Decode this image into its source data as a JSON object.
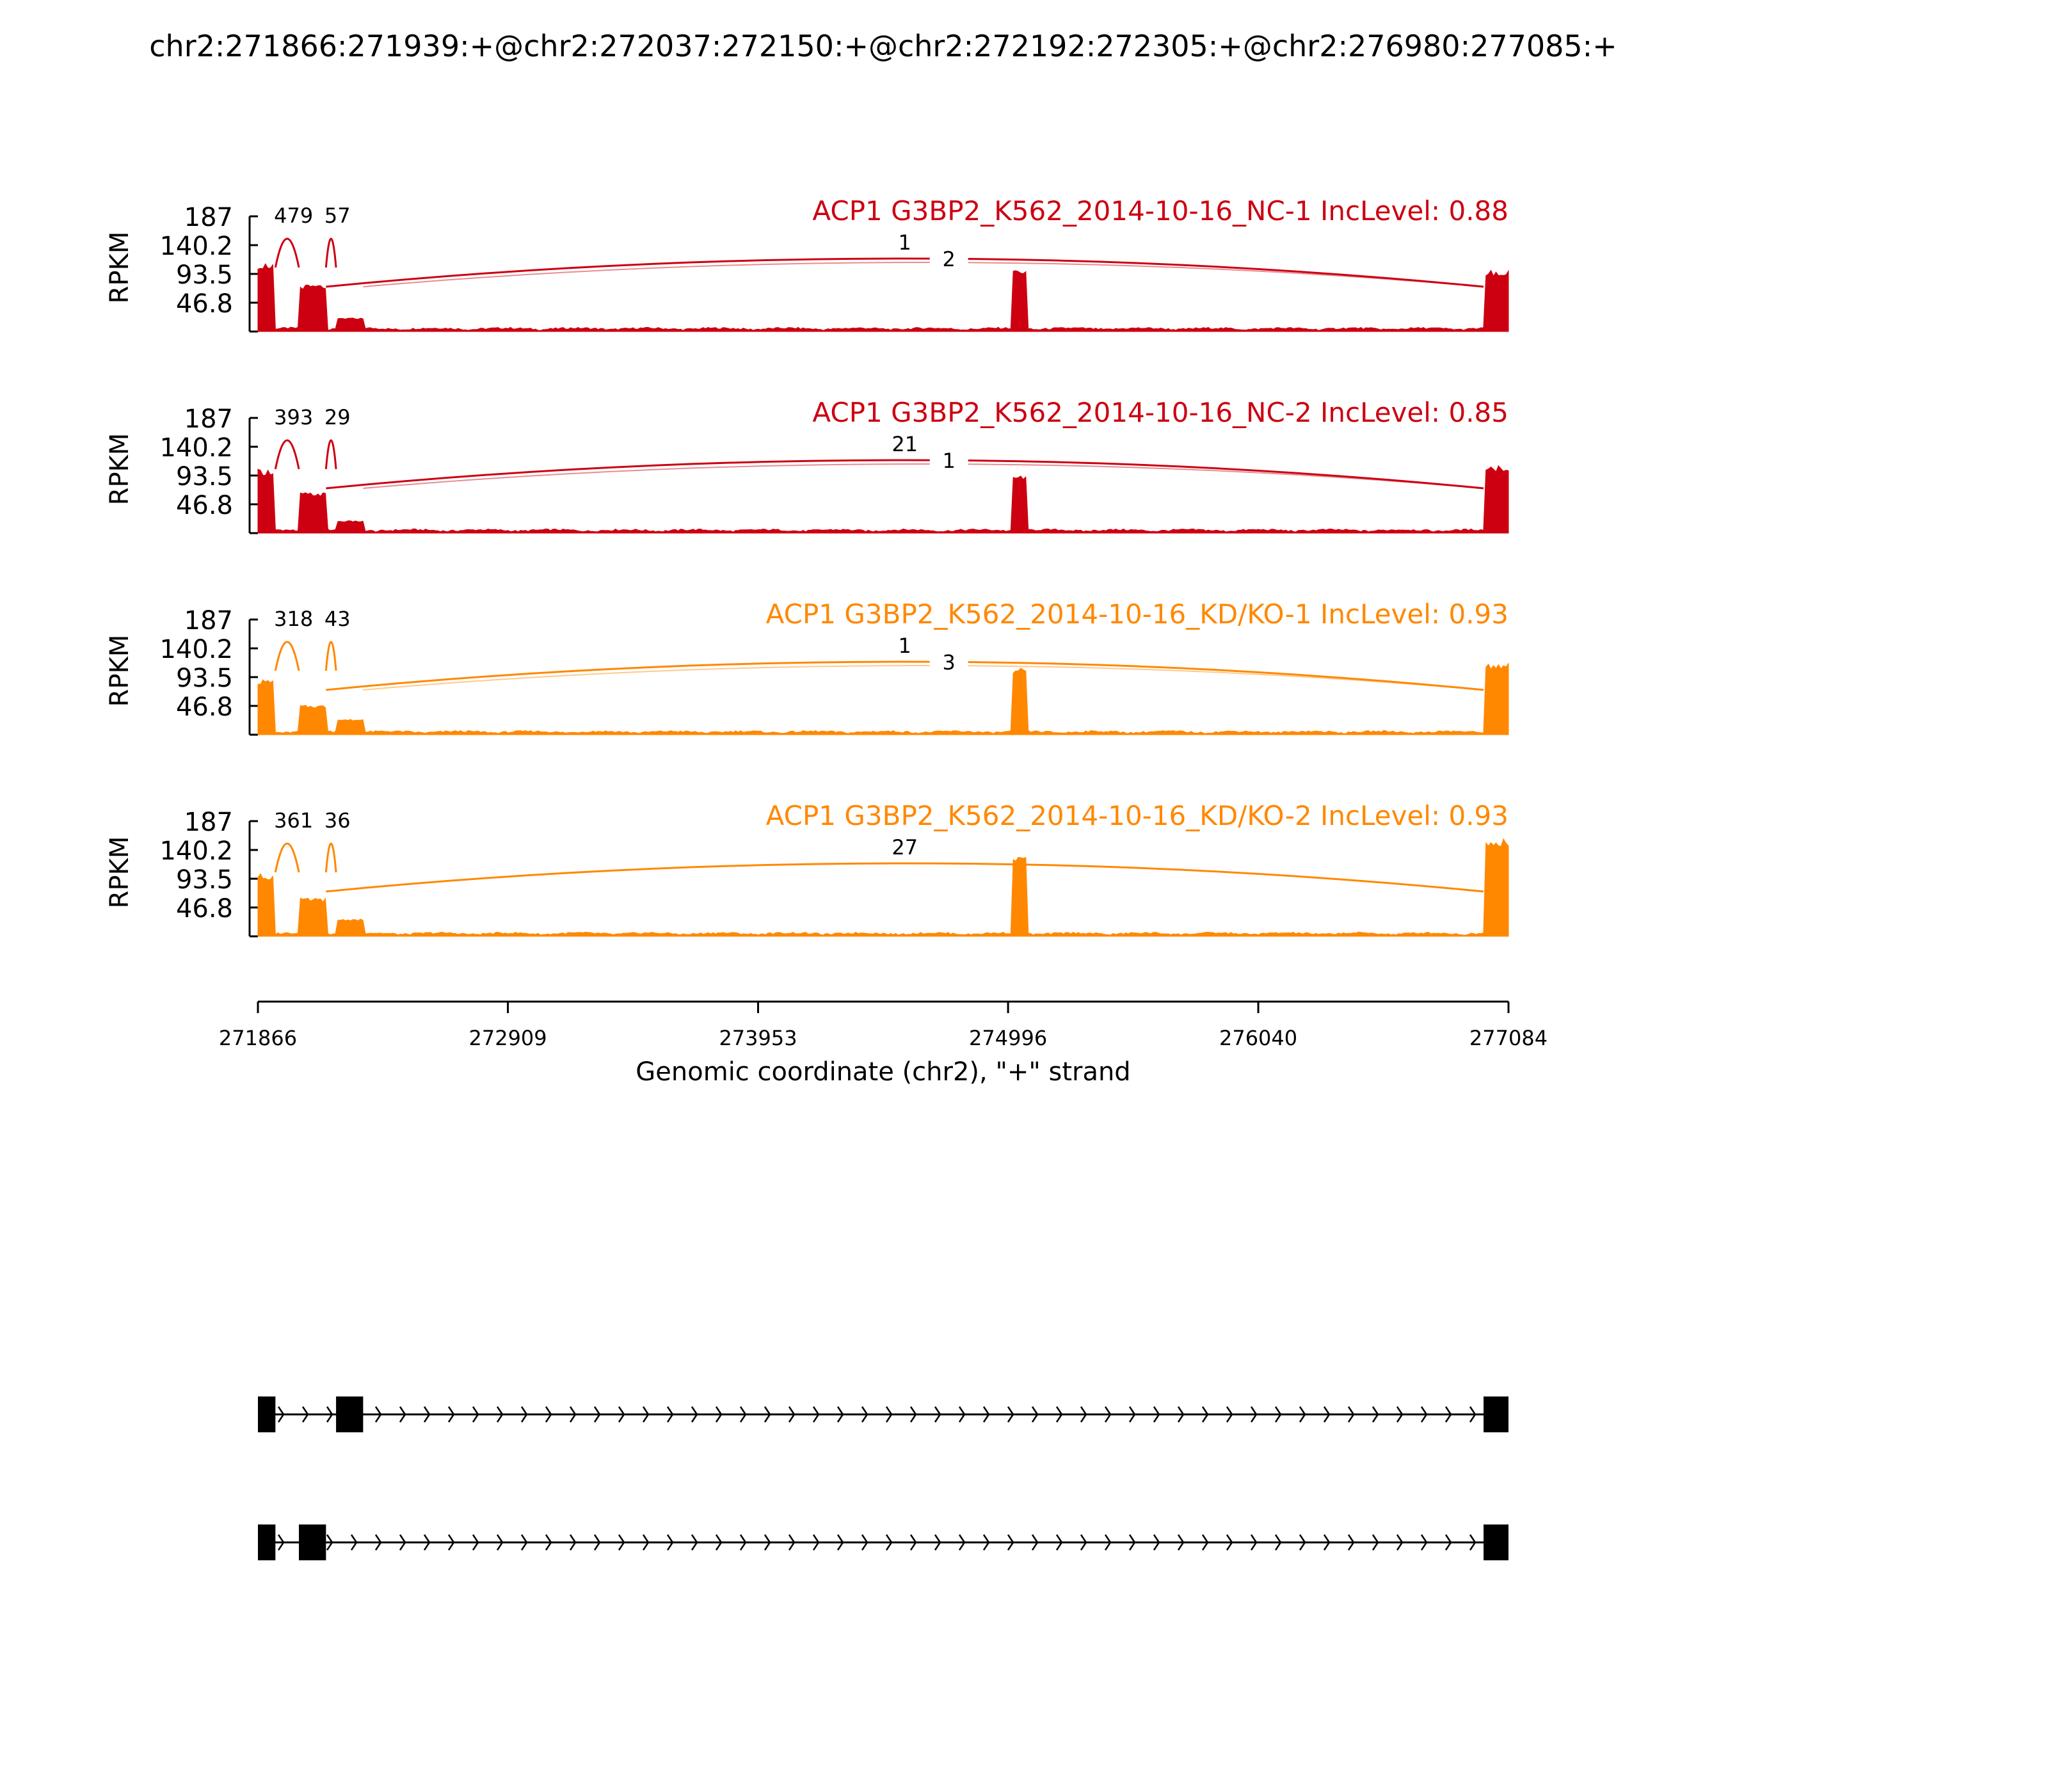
{
  "chart_data": {
    "type": "area",
    "title": "chr2:271866:271939:+@chr2:272037:272150:+@chr2:272192:272305:+@chr2:276980:277085:+",
    "ylabel": "RPKM",
    "xlabel": "Genomic coordinate (chr2), \"+\" strand",
    "xlim": [
      271866,
      277084
    ],
    "ylim": [
      0,
      187
    ],
    "xticks": [
      "271866",
      "272909",
      "273953",
      "274996",
      "276040",
      "277084"
    ],
    "xtick_values": [
      271866,
      272909,
      273953,
      274996,
      276040,
      277084
    ],
    "yticks": [
      "187",
      "140.2",
      "93.5",
      "46.8"
    ],
    "ytick_values": [
      187,
      140.2,
      93.5,
      46.8
    ],
    "grid": false,
    "exons": [
      [
        271866,
        271939
      ],
      [
        272037,
        272150
      ],
      [
        272192,
        272305
      ],
      [
        275011,
        275075
      ],
      [
        276980,
        277084
      ]
    ],
    "panels": [
      {
        "label": "ACP1 G3BP2_K562_2014-10-16_NC-1 IncLevel: 0.88",
        "color": "#cc0011",
        "exon_heights": [
          112,
          76,
          22,
          99,
          100
        ],
        "junctions": [
          {
            "label": "479",
            "from": 271939,
            "to": 272037,
            "shade": "dark"
          },
          {
            "label": "57",
            "from": 272150,
            "to": 272192,
            "shade": "dark"
          },
          {
            "label": "1",
            "from": 272150,
            "to": 276980,
            "shade": "dark"
          },
          {
            "label": "2",
            "from": 272305,
            "to": 276980,
            "shade": "light"
          }
        ]
      },
      {
        "label": "ACP1 G3BP2_K562_2014-10-16_NC-2 IncLevel: 0.85",
        "color": "#cc0011",
        "exon_heights": [
          104,
          66,
          20,
          96,
          110
        ],
        "junctions": [
          {
            "label": "393",
            "from": 271939,
            "to": 272037,
            "shade": "dark"
          },
          {
            "label": "29",
            "from": 272150,
            "to": 272192,
            "shade": "dark"
          },
          {
            "label": "21",
            "from": 272150,
            "to": 276980,
            "shade": "dark"
          },
          {
            "label": "1",
            "from": 272305,
            "to": 276980,
            "shade": "light"
          }
        ]
      },
      {
        "label": "ACP1 G3BP2_K562_2014-10-16_KD/KO-1 IncLevel: 0.93",
        "color": "#ff8800",
        "exon_heights": [
          90,
          48,
          25,
          108,
          118
        ],
        "junctions": [
          {
            "label": "318",
            "from": 271939,
            "to": 272037,
            "shade": "dark"
          },
          {
            "label": "43",
            "from": 272150,
            "to": 272192,
            "shade": "dark"
          },
          {
            "label": "1",
            "from": 272150,
            "to": 276980,
            "shade": "dark"
          },
          {
            "label": "3",
            "from": 272305,
            "to": 276980,
            "shade": "light"
          }
        ]
      },
      {
        "label": "ACP1 G3BP2_K562_2014-10-16_KD/KO-2 IncLevel: 0.93",
        "color": "#ff8800",
        "exon_heights": [
          102,
          62,
          28,
          130,
          160
        ],
        "junctions": [
          {
            "label": "361",
            "from": 271939,
            "to": 272037,
            "shade": "dark"
          },
          {
            "label": "36",
            "from": 272150,
            "to": 272192,
            "shade": "dark"
          },
          {
            "label": "27",
            "from": 272150,
            "to": 276980,
            "shade": "dark"
          }
        ]
      }
    ],
    "isoforms": [
      {
        "exons": [
          [
            271866,
            271939
          ],
          [
            272192,
            272305
          ],
          [
            276980,
            277084
          ]
        ]
      },
      {
        "exons": [
          [
            271866,
            271939
          ],
          [
            272037,
            272150
          ],
          [
            276980,
            277084
          ]
        ]
      }
    ]
  }
}
